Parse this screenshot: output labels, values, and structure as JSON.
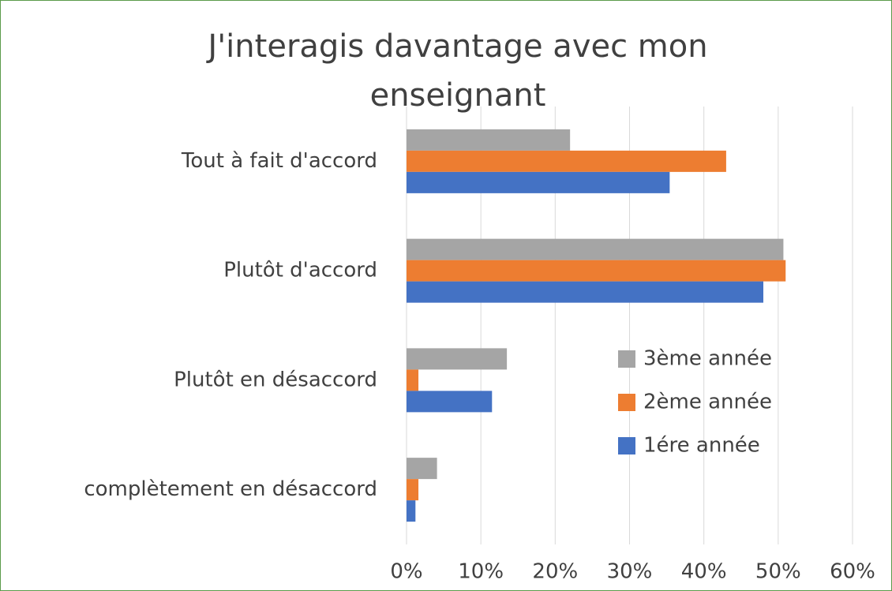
{
  "chart_data": {
    "type": "bar",
    "orientation": "horizontal",
    "title": "J'interagis davantage avec mon enseignant",
    "categories": [
      "Tout à fait d'accord",
      "Plutôt d'accord",
      "Plutôt en désaccord",
      "complètement en désaccord"
    ],
    "series": [
      {
        "name": "3ème année",
        "color": "#a5a5a5",
        "values": [
          22,
          50.7,
          13.5,
          4.1
        ]
      },
      {
        "name": "2ème année",
        "color": "#ed7d31",
        "values": [
          43,
          51,
          1.6,
          1.6
        ]
      },
      {
        "name": "1ére année",
        "color": "#4472c4",
        "values": [
          35.4,
          48,
          11.5,
          1.2
        ]
      }
    ],
    "xlim": [
      0,
      60
    ],
    "xticks": [
      {
        "value": 0,
        "label": "0%"
      },
      {
        "value": 10,
        "label": "10%"
      },
      {
        "value": 20,
        "label": "20%"
      },
      {
        "value": 30,
        "label": "30%"
      },
      {
        "value": 40,
        "label": "40%"
      },
      {
        "value": 50,
        "label": "50%"
      },
      {
        "value": 60,
        "label": "60%"
      }
    ],
    "grid": true,
    "legend": "right"
  }
}
